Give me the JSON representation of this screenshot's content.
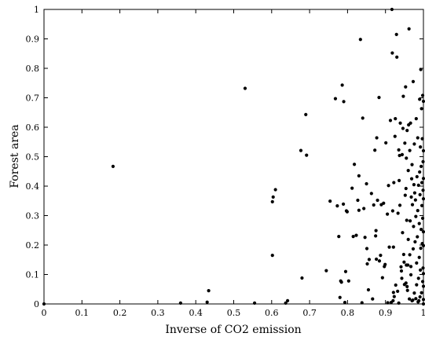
{
  "chart_data": {
    "type": "scatter",
    "xlabel": "Inverse of CO2 emission",
    "ylabel": "Forest area",
    "xlim": [
      0,
      1
    ],
    "ylim": [
      0,
      1
    ],
    "xticks": [
      "0",
      "0.1",
      "0.2",
      "0.3",
      "0.4",
      "0.5",
      "0.6",
      "0.7",
      "0.8",
      "0.9",
      "1"
    ],
    "yticks": [
      "0",
      "0.1",
      "0.2",
      "0.3",
      "0.4",
      "0.5",
      "0.6",
      "0.7",
      "0.8",
      "0.9",
      "1"
    ],
    "grid": false,
    "legend": "none",
    "marker_color": "#000000",
    "points": [
      [
        0.0,
        0.0
      ],
      [
        0.182,
        0.467
      ],
      [
        0.36,
        0.003
      ],
      [
        0.43,
        0.006
      ],
      [
        0.434,
        0.045
      ],
      [
        0.53,
        0.732
      ],
      [
        0.555,
        0.003
      ],
      [
        0.602,
        0.347
      ],
      [
        0.602,
        0.165
      ],
      [
        0.604,
        0.363
      ],
      [
        0.61,
        0.388
      ],
      [
        0.637,
        0.003
      ],
      [
        0.642,
        0.011
      ],
      [
        0.677,
        0.521
      ],
      [
        0.68,
        0.088
      ],
      [
        0.69,
        0.643
      ],
      [
        0.692,
        0.505
      ],
      [
        0.744,
        0.113
      ],
      [
        0.754,
        0.349
      ],
      [
        0.768,
        0.697
      ],
      [
        0.773,
        0.333
      ],
      [
        0.777,
        0.229
      ],
      [
        0.78,
        0.022
      ],
      [
        0.782,
        0.078
      ],
      [
        0.784,
        0.074
      ],
      [
        0.786,
        0.743
      ],
      [
        0.789,
        0.339
      ],
      [
        0.79,
        0.687
      ],
      [
        0.793,
        0.005
      ],
      [
        0.795,
        0.11
      ],
      [
        0.797,
        0.316
      ],
      [
        0.799,
        0.313
      ],
      [
        0.803,
        0.078
      ],
      [
        0.812,
        0.393
      ],
      [
        0.815,
        0.229
      ],
      [
        0.818,
        0.474
      ],
      [
        0.823,
        0.233
      ],
      [
        0.827,
        0.352
      ],
      [
        0.83,
        0.435
      ],
      [
        0.83,
        0.318
      ],
      [
        0.834,
        0.898
      ],
      [
        0.838,
        0.004
      ],
      [
        0.84,
        0.631
      ],
      [
        0.843,
        0.324
      ],
      [
        0.846,
        0.226
      ],
      [
        0.85,
        0.408
      ],
      [
        0.851,
        0.188
      ],
      [
        0.852,
        0.136
      ],
      [
        0.855,
        0.048
      ],
      [
        0.857,
        0.151
      ],
      [
        0.863,
        0.375
      ],
      [
        0.866,
        0.017
      ],
      [
        0.869,
        0.336
      ],
      [
        0.872,
        0.522
      ],
      [
        0.874,
        0.231
      ],
      [
        0.875,
        0.249
      ],
      [
        0.876,
        0.152
      ],
      [
        0.877,
        0.564
      ],
      [
        0.879,
        0.352
      ],
      [
        0.883,
        0.701
      ],
      [
        0.884,
        0.146
      ],
      [
        0.887,
        0.165
      ],
      [
        0.889,
        0.337
      ],
      [
        0.892,
        0.089
      ],
      [
        0.895,
        0.342
      ],
      [
        0.897,
        0.127
      ],
      [
        0.899,
        0.134
      ],
      [
        0.901,
        0.547
      ],
      [
        0.905,
        0.305
      ],
      [
        0.906,
        0.004
      ],
      [
        0.908,
        0.402
      ],
      [
        0.91,
        0.193
      ],
      [
        0.913,
        0.623
      ],
      [
        0.915,
        0.005
      ],
      [
        0.917,
        1.0
      ],
      [
        0.918,
        0.852
      ],
      [
        0.919,
        0.316
      ],
      [
        0.92,
        0.011
      ],
      [
        0.921,
        0.039
      ],
      [
        0.921,
        0.193
      ],
      [
        0.922,
        0.412
      ],
      [
        0.923,
        0.025
      ],
      [
        0.925,
        0.569
      ],
      [
        0.926,
        0.629
      ],
      [
        0.927,
        0.064
      ],
      [
        0.929,
        0.915
      ],
      [
        0.93,
        0.838
      ],
      [
        0.932,
        0.043
      ],
      [
        0.933,
        0.308
      ],
      [
        0.935,
        0.003
      ],
      [
        0.935,
        0.523
      ],
      [
        0.936,
        0.419
      ],
      [
        0.937,
        0.504
      ],
      [
        0.938,
        0.335
      ],
      [
        0.939,
        0.614
      ],
      [
        0.941,
        0.126
      ],
      [
        0.942,
        0.112
      ],
      [
        0.943,
        0.087
      ],
      [
        0.944,
        0.507
      ],
      [
        0.945,
        0.242
      ],
      [
        0.946,
        0.596
      ],
      [
        0.947,
        0.705
      ],
      [
        0.948,
        0.168
      ],
      [
        0.949,
        0.142
      ],
      [
        0.95,
        0.066
      ],
      [
        0.951,
        0.546
      ],
      [
        0.952,
        0.369
      ],
      [
        0.953,
        0.737
      ],
      [
        0.954,
        0.071
      ],
      [
        0.954,
        0.392
      ],
      [
        0.955,
        0.132
      ],
      [
        0.955,
        0.495
      ],
      [
        0.956,
        0.284
      ],
      [
        0.957,
        0.589
      ],
      [
        0.957,
        0.059
      ],
      [
        0.958,
        0.046
      ],
      [
        0.959,
        0.132
      ],
      [
        0.96,
        0.219
      ],
      [
        0.96,
        0.453
      ],
      [
        0.961,
        0.608
      ],
      [
        0.962,
        0.934
      ],
      [
        0.963,
        0.017
      ],
      [
        0.964,
        0.521
      ],
      [
        0.964,
        0.167
      ],
      [
        0.965,
        0.282
      ],
      [
        0.966,
        0.614
      ],
      [
        0.967,
        0.127
      ],
      [
        0.967,
        0.099
      ],
      [
        0.968,
        0.363
      ],
      [
        0.969,
        0.425
      ],
      [
        0.97,
        0.011
      ],
      [
        0.97,
        0.473
      ],
      [
        0.971,
        0.337
      ],
      [
        0.972,
        0.013
      ],
      [
        0.973,
        0.755
      ],
      [
        0.973,
        0.187
      ],
      [
        0.974,
        0.263
      ],
      [
        0.975,
        0.405
      ],
      [
        0.976,
        0.543
      ],
      [
        0.976,
        0.037
      ],
      [
        0.977,
        0.377
      ],
      [
        0.978,
        0.211
      ],
      [
        0.979,
        0.353
      ],
      [
        0.98,
        0.018
      ],
      [
        0.98,
        0.297
      ],
      [
        0.981,
        0.629
      ],
      [
        0.982,
        0.139
      ],
      [
        0.982,
        0.065
      ],
      [
        0.983,
        0.432
      ],
      [
        0.984,
        0.228
      ],
      [
        0.985,
        0.317
      ],
      [
        0.985,
        0.564
      ],
      [
        0.986,
        0.007
      ],
      [
        0.987,
        0.403
      ],
      [
        0.987,
        0.087
      ],
      [
        0.988,
        0.011
      ],
      [
        0.989,
        0.158
      ],
      [
        0.989,
        0.273
      ],
      [
        0.99,
        0.695
      ],
      [
        0.99,
        0.448
      ],
      [
        0.991,
        0.024
      ],
      [
        0.991,
        0.371
      ],
      [
        0.992,
        0.533
      ],
      [
        0.992,
        0.115
      ],
      [
        0.993,
        0.189
      ],
      [
        0.993,
        0.796
      ],
      [
        0.994,
        0.253
      ],
      [
        0.994,
        0.467
      ],
      [
        0.995,
        0.038
      ],
      [
        0.995,
        0.663
      ],
      [
        0.996,
        0.334
      ],
      [
        0.996,
        0.412
      ],
      [
        0.997,
        0.205
      ],
      [
        0.997,
        0.561
      ],
      [
        0.998,
        0.076
      ],
      [
        0.998,
        0.291
      ],
      [
        0.998,
        0.708
      ],
      [
        0.999,
        0.122
      ],
      [
        0.999,
        0.386
      ],
      [
        0.999,
        0.483
      ],
      [
        1.0,
        0.0
      ],
      [
        1.0,
        0.015
      ],
      [
        1.0,
        0.103
      ],
      [
        1.0,
        0.198
      ],
      [
        1.0,
        0.357
      ],
      [
        1.0,
        0.426
      ],
      [
        1.0,
        0.688
      ],
      [
        1.0,
        0.52
      ],
      [
        1.0,
        0.06
      ],
      [
        1.0,
        0.245
      ]
    ]
  }
}
